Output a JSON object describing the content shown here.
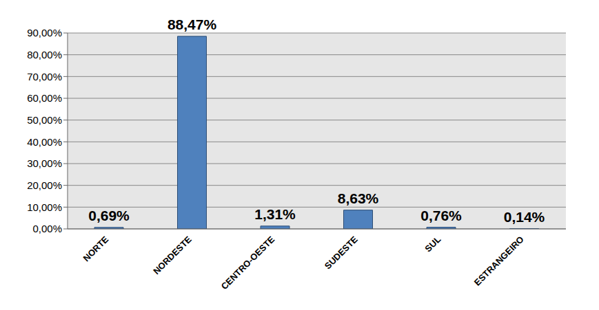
{
  "chart_data": {
    "type": "bar",
    "categories": [
      "NORTE",
      "NORDESTE",
      "CENTRO-OESTE",
      "SUDESTE",
      "SUL",
      "ESTRANGEIRO"
    ],
    "values": [
      0.69,
      88.47,
      1.31,
      8.63,
      0.76,
      0.14
    ],
    "value_labels": [
      "0,69%",
      "88,47%",
      "1,31%",
      "8,63%",
      "0,76%",
      "0,14%"
    ],
    "color": "#4f81bd",
    "ylim": [
      0,
      90
    ],
    "yticks": [
      {
        "value": 0,
        "label": "0,00%"
      },
      {
        "value": 10,
        "label": "10,00%"
      },
      {
        "value": 20,
        "label": "20,00%"
      },
      {
        "value": 30,
        "label": "30,00%"
      },
      {
        "value": 40,
        "label": "40,00%"
      },
      {
        "value": 50,
        "label": "50,00%"
      },
      {
        "value": 60,
        "label": "60,00%"
      },
      {
        "value": 70,
        "label": "70,00%"
      },
      {
        "value": 80,
        "label": "80,00%"
      },
      {
        "value": 90,
        "label": "90,00%"
      }
    ],
    "grid": true,
    "data_labels": true
  }
}
